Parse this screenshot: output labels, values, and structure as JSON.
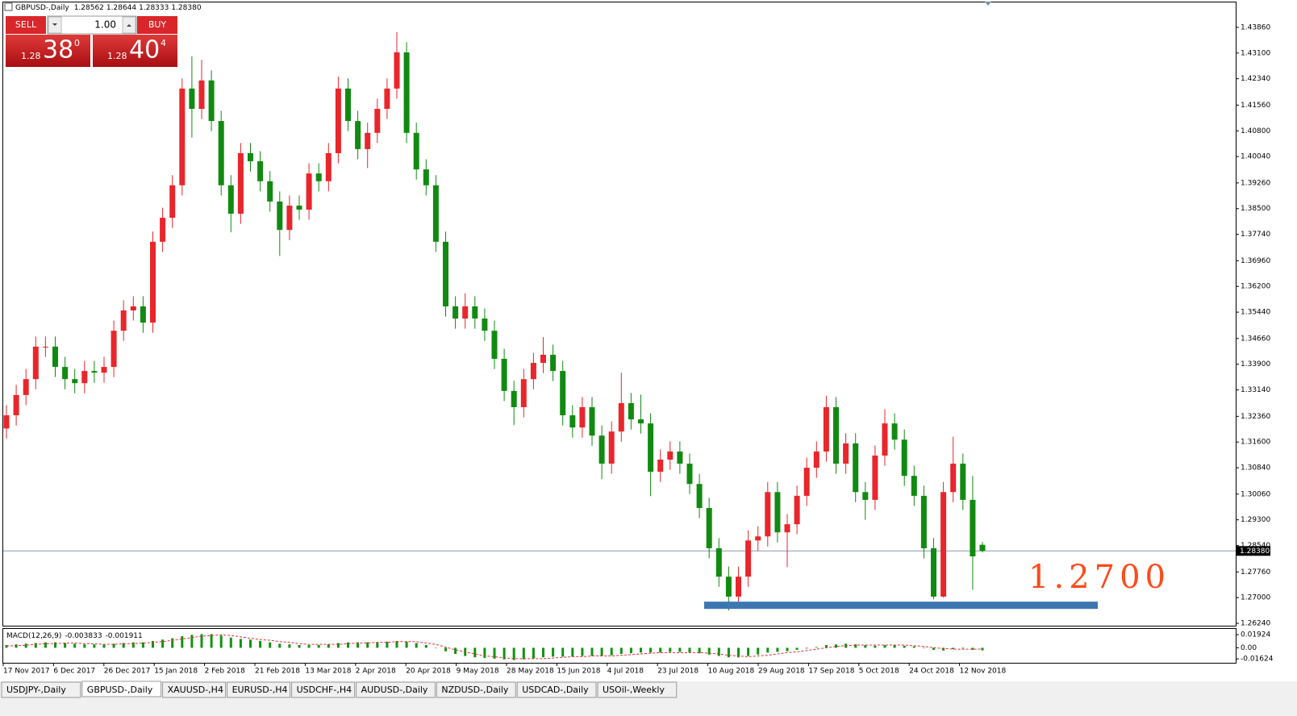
{
  "window": {
    "symbol": "GBPUSD-,Daily"
  },
  "trade_panel": {
    "sell": "SELL",
    "buy": "BUY",
    "lot": "1.00",
    "sell_price": {
      "big": "1.28",
      "pips": "38",
      "fraction": "0"
    },
    "buy_price": {
      "big": "1.28",
      "pips": "40",
      "fraction": "4"
    }
  },
  "chart_data": {
    "type": "candlestick",
    "x_labels": [
      "17 Nov 2017",
      "6 Dec 2017",
      "26 Dec 2017",
      "15 Jan 2018",
      "2 Feb 2018",
      "21 Feb 2018",
      "13 Mar 2018",
      "2 Apr 2018",
      "20 Apr 2018",
      "9 May 2018",
      "28 May 2018",
      "15 Jun 2018",
      "4 Jul 2018",
      "23 Jul 2018",
      "10 Aug 2018",
      "29 Aug 2018",
      "17 Sep 2018",
      "5 Oct 2018",
      "24 Oct 2018",
      "12 Nov 2018"
    ],
    "open": [
      1.32,
      1.3239,
      1.3299,
      1.3346,
      1.3442,
      1.3442,
      1.3382,
      1.3346,
      1.3334,
      1.337,
      1.3365,
      1.3382,
      1.3489,
      1.3549,
      1.3561,
      1.3513,
      1.3752,
      1.3823,
      1.3919,
      1.4205,
      1.4145,
      1.4229,
      1.4109,
      1.3919,
      1.3835,
      1.4014,
      1.399,
      1.3931,
      1.3871,
      1.3787,
      1.3859,
      1.3847,
      1.3954,
      1.3931,
      1.4014,
      1.4205,
      1.4109,
      1.4026,
      1.4074,
      1.4145,
      1.4205,
      1.4312,
      1.4074,
      1.3966,
      1.3919,
      1.3752,
      1.3561,
      1.3525,
      1.3561,
      1.3525,
      1.3489,
      1.3406,
      1.3311,
      1.3263,
      1.3346,
      1.3394,
      1.3418,
      1.337,
      1.3239,
      1.3203,
      1.3263,
      1.3179,
      1.3096,
      1.3191,
      1.3275,
      1.3227,
      1.3215,
      1.3072,
      1.3108,
      1.3132,
      1.3096,
      1.3036,
      1.2965,
      1.2846,
      1.2762,
      1.2703,
      1.2762,
      1.2869,
      1.2881,
      1.3012,
      1.2893,
      1.2917,
      1.3001,
      1.3084,
      1.3132,
      1.3263,
      1.3096,
      1.3156,
      1.3012,
      1.2989,
      1.312,
      1.3215,
      1.3167,
      1.306,
      1.3001,
      1.2846,
      1.2703,
      1.3012,
      1.3096,
      1.2989,
      1.28562
    ],
    "high": [
      1.3269,
      1.3329,
      1.3376,
      1.3472,
      1.3472,
      1.3472,
      1.3412,
      1.3376,
      1.34,
      1.34,
      1.3412,
      1.3519,
      1.3579,
      1.3591,
      1.3591,
      1.3782,
      1.3853,
      1.3949,
      1.4235,
      1.43,
      1.429,
      1.4259,
      1.4139,
      1.3949,
      1.4044,
      1.4044,
      1.402,
      1.3961,
      1.3901,
      1.3889,
      1.3889,
      1.3984,
      1.3984,
      1.4044,
      1.424,
      1.4235,
      1.4139,
      1.4104,
      1.4175,
      1.4235,
      1.4372,
      1.4342,
      1.4104,
      1.3996,
      1.3949,
      1.3782,
      1.3591,
      1.36,
      1.3591,
      1.3555,
      1.3519,
      1.3436,
      1.3341,
      1.3376,
      1.3424,
      1.347,
      1.3448,
      1.34,
      1.3269,
      1.3293,
      1.3293,
      1.3209,
      1.3221,
      1.3365,
      1.3305,
      1.33,
      1.3245,
      1.3138,
      1.3162,
      1.3162,
      1.3126,
      1.3066,
      1.2995,
      1.2876,
      1.2792,
      1.2792,
      1.2899,
      1.2911,
      1.3042,
      1.3042,
      1.2947,
      1.3031,
      1.3114,
      1.3162,
      1.3297,
      1.3293,
      1.3186,
      1.3186,
      1.3042,
      1.315,
      1.3257,
      1.3245,
      1.3197,
      1.309,
      1.3031,
      1.2876,
      1.3042,
      1.3176,
      1.3126,
      1.306,
      1.28644
    ],
    "low": [
      1.317,
      1.3209,
      1.3269,
      1.3316,
      1.3412,
      1.3352,
      1.3316,
      1.3304,
      1.3304,
      1.3335,
      1.3335,
      1.3352,
      1.3459,
      1.3519,
      1.3483,
      1.3483,
      1.3722,
      1.3793,
      1.3889,
      1.406,
      1.4115,
      1.4079,
      1.3889,
      1.378,
      1.3805,
      1.396,
      1.3901,
      1.3841,
      1.371,
      1.3757,
      1.3817,
      1.3817,
      1.3901,
      1.3901,
      1.3984,
      1.4079,
      1.3996,
      1.397,
      1.4044,
      1.4115,
      1.4175,
      1.4044,
      1.3936,
      1.3889,
      1.3722,
      1.3531,
      1.3495,
      1.3495,
      1.3495,
      1.3459,
      1.3376,
      1.3281,
      1.321,
      1.3233,
      1.3316,
      1.3364,
      1.334,
      1.3209,
      1.3173,
      1.3173,
      1.3149,
      1.305,
      1.3066,
      1.3161,
      1.3197,
      1.3185,
      1.3,
      1.3042,
      1.3078,
      1.3066,
      1.3006,
      1.2935,
      1.2816,
      1.2732,
      1.2662,
      1.2673,
      1.2732,
      1.2839,
      1.2851,
      1.2863,
      1.279,
      1.2887,
      1.2971,
      1.3054,
      1.3102,
      1.3066,
      1.3066,
      1.2982,
      1.293,
      1.2959,
      1.309,
      1.3137,
      1.303,
      1.2971,
      1.2816,
      1.2695,
      1.27,
      1.2982,
      1.2959,
      1.2723,
      1.28333
    ],
    "close": [
      1.3239,
      1.3299,
      1.3346,
      1.3442,
      1.3442,
      1.3382,
      1.3346,
      1.3334,
      1.337,
      1.3365,
      1.3382,
      1.3489,
      1.3549,
      1.3561,
      1.3513,
      1.3752,
      1.3823,
      1.3919,
      1.4205,
      1.4145,
      1.4229,
      1.4109,
      1.3919,
      1.3835,
      1.4014,
      1.399,
      1.3931,
      1.3871,
      1.3787,
      1.3859,
      1.3847,
      1.3954,
      1.3931,
      1.4014,
      1.4205,
      1.4109,
      1.4026,
      1.4074,
      1.4145,
      1.4205,
      1.4312,
      1.4074,
      1.3966,
      1.3919,
      1.3752,
      1.3561,
      1.3525,
      1.3561,
      1.3525,
      1.3489,
      1.3406,
      1.3311,
      1.3263,
      1.3346,
      1.3394,
      1.3418,
      1.337,
      1.3239,
      1.3203,
      1.3263,
      1.3179,
      1.3096,
      1.3191,
      1.3275,
      1.3227,
      1.3215,
      1.3072,
      1.3108,
      1.3132,
      1.3096,
      1.3036,
      1.2965,
      1.2846,
      1.2762,
      1.2703,
      1.2762,
      1.2869,
      1.2881,
      1.3012,
      1.2893,
      1.2917,
      1.3001,
      1.3084,
      1.3132,
      1.3263,
      1.3096,
      1.3156,
      1.3012,
      1.2989,
      1.312,
      1.3215,
      1.3167,
      1.306,
      1.3001,
      1.2846,
      1.2703,
      1.3012,
      1.3096,
      1.2989,
      1.2822,
      1.2838
    ],
    "up_color": "#e8262b",
    "down_color": "#118a11",
    "ylim": [
      1.2617,
      1.4462
    ],
    "yticks": [
      {
        "value": 1.4386,
        "label": "1.43860"
      },
      {
        "value": 1.431,
        "label": "1.43100"
      },
      {
        "value": 1.4234,
        "label": "1.42340"
      },
      {
        "value": 1.4156,
        "label": "1.41560"
      },
      {
        "value": 1.408,
        "label": "1.40800"
      },
      {
        "value": 1.4004,
        "label": "1.40040"
      },
      {
        "value": 1.3926,
        "label": "1.39260"
      },
      {
        "value": 1.385,
        "label": "1.38500"
      },
      {
        "value": 1.3774,
        "label": "1.37740"
      },
      {
        "value": 1.3696,
        "label": "1.36960"
      },
      {
        "value": 1.362,
        "label": "1.36200"
      },
      {
        "value": 1.3544,
        "label": "1.35440"
      },
      {
        "value": 1.3466,
        "label": "1.34660"
      },
      {
        "value": 1.339,
        "label": "1.33900"
      },
      {
        "value": 1.3314,
        "label": "1.33140"
      },
      {
        "value": 1.3236,
        "label": "1.32360"
      },
      {
        "value": 1.316,
        "label": "1.31600"
      },
      {
        "value": 1.3084,
        "label": "1.30840"
      },
      {
        "value": 1.3006,
        "label": "1.30060"
      },
      {
        "value": 1.293,
        "label": "1.29300"
      },
      {
        "value": 1.2854,
        "label": "1.28540"
      },
      {
        "value": 1.2776,
        "label": "1.27760"
      },
      {
        "value": 1.27,
        "label": "1.27000"
      },
      {
        "value": 1.2624,
        "label": "1.26240"
      }
    ],
    "current_price": {
      "value": 1.2838,
      "label": "1.28380"
    },
    "annotation": {
      "value": 1.27,
      "label": "1.2700",
      "color": "#ff4a1a",
      "bar_color": "#3d77b1"
    },
    "macd": {
      "name": "MACD(12,26,9)",
      "bar_color": "#129212",
      "signal_color": "#e03030",
      "ylim": [
        -0.022,
        0.0265
      ],
      "yticks": [
        0.01924,
        {
          "value": 0,
          "label": "0.00"
        },
        -0.01624
      ],
      "values": [
        0.004,
        0.005,
        0.006,
        0.007,
        0.008,
        0.008,
        0.007,
        0.006,
        0.005,
        0.005,
        0.005,
        0.006,
        0.007,
        0.008,
        0.008,
        0.01,
        0.012,
        0.014,
        0.017,
        0.019,
        0.02,
        0.02,
        0.018,
        0.015,
        0.013,
        0.012,
        0.01,
        0.008,
        0.006,
        0.005,
        0.004,
        0.004,
        0.004,
        0.005,
        0.007,
        0.008,
        0.008,
        0.008,
        0.008,
        0.009,
        0.01,
        0.009,
        0.007,
        0.004,
        0.0,
        -0.005,
        -0.009,
        -0.012,
        -0.014,
        -0.015,
        -0.016,
        -0.017,
        -0.018,
        -0.017,
        -0.016,
        -0.014,
        -0.013,
        -0.013,
        -0.013,
        -0.012,
        -0.012,
        -0.012,
        -0.011,
        -0.009,
        -0.008,
        -0.007,
        -0.007,
        -0.007,
        -0.006,
        -0.006,
        -0.007,
        -0.008,
        -0.01,
        -0.012,
        -0.014,
        -0.014,
        -0.012,
        -0.01,
        -0.007,
        -0.006,
        -0.005,
        -0.003,
        -0.001,
        0.001,
        0.004,
        0.005,
        0.006,
        0.005,
        0.004,
        0.003,
        0.004,
        0.004,
        0.003,
        0.002,
        0.0,
        -0.003,
        -0.004,
        -0.002,
        -0.001,
        -0.003,
        -0.003833
      ],
      "signal": [
        0.003,
        0.003,
        0.004,
        0.005,
        0.006,
        0.006,
        0.007,
        0.007,
        0.006,
        0.006,
        0.005,
        0.005,
        0.006,
        0.006,
        0.007,
        0.008,
        0.009,
        0.011,
        0.013,
        0.015,
        0.017,
        0.018,
        0.019,
        0.018,
        0.016,
        0.014,
        0.012,
        0.011,
        0.009,
        0.008,
        0.006,
        0.005,
        0.005,
        0.005,
        0.005,
        0.006,
        0.007,
        0.007,
        0.008,
        0.008,
        0.009,
        0.009,
        0.009,
        0.007,
        0.005,
        0.001,
        -0.003,
        -0.006,
        -0.009,
        -0.012,
        -0.013,
        -0.015,
        -0.016,
        -0.016,
        -0.016,
        -0.016,
        -0.015,
        -0.014,
        -0.013,
        -0.013,
        -0.012,
        -0.012,
        -0.012,
        -0.011,
        -0.01,
        -0.009,
        -0.008,
        -0.007,
        -0.007,
        -0.007,
        -0.007,
        -0.007,
        -0.008,
        -0.009,
        -0.011,
        -0.012,
        -0.013,
        -0.012,
        -0.011,
        -0.009,
        -0.007,
        -0.006,
        -0.004,
        -0.002,
        0.0,
        0.002,
        0.003,
        0.004,
        0.004,
        0.004,
        0.004,
        0.004,
        0.004,
        0.003,
        0.002,
        0.0,
        -0.001,
        -0.002,
        -0.002,
        -0.002,
        -0.001911
      ]
    }
  },
  "tabs": [
    "USDJPY-,Daily",
    "GBPUSD-,Daily",
    "XAUUSD-,H4",
    "EURUSD-,H4",
    "USDCHF-,H4",
    "AUDUSD-,Daily",
    "NZDUSD-,Daily",
    "USDCAD-,Daily",
    "USOil-,Weekly"
  ],
  "active_tab": 1
}
